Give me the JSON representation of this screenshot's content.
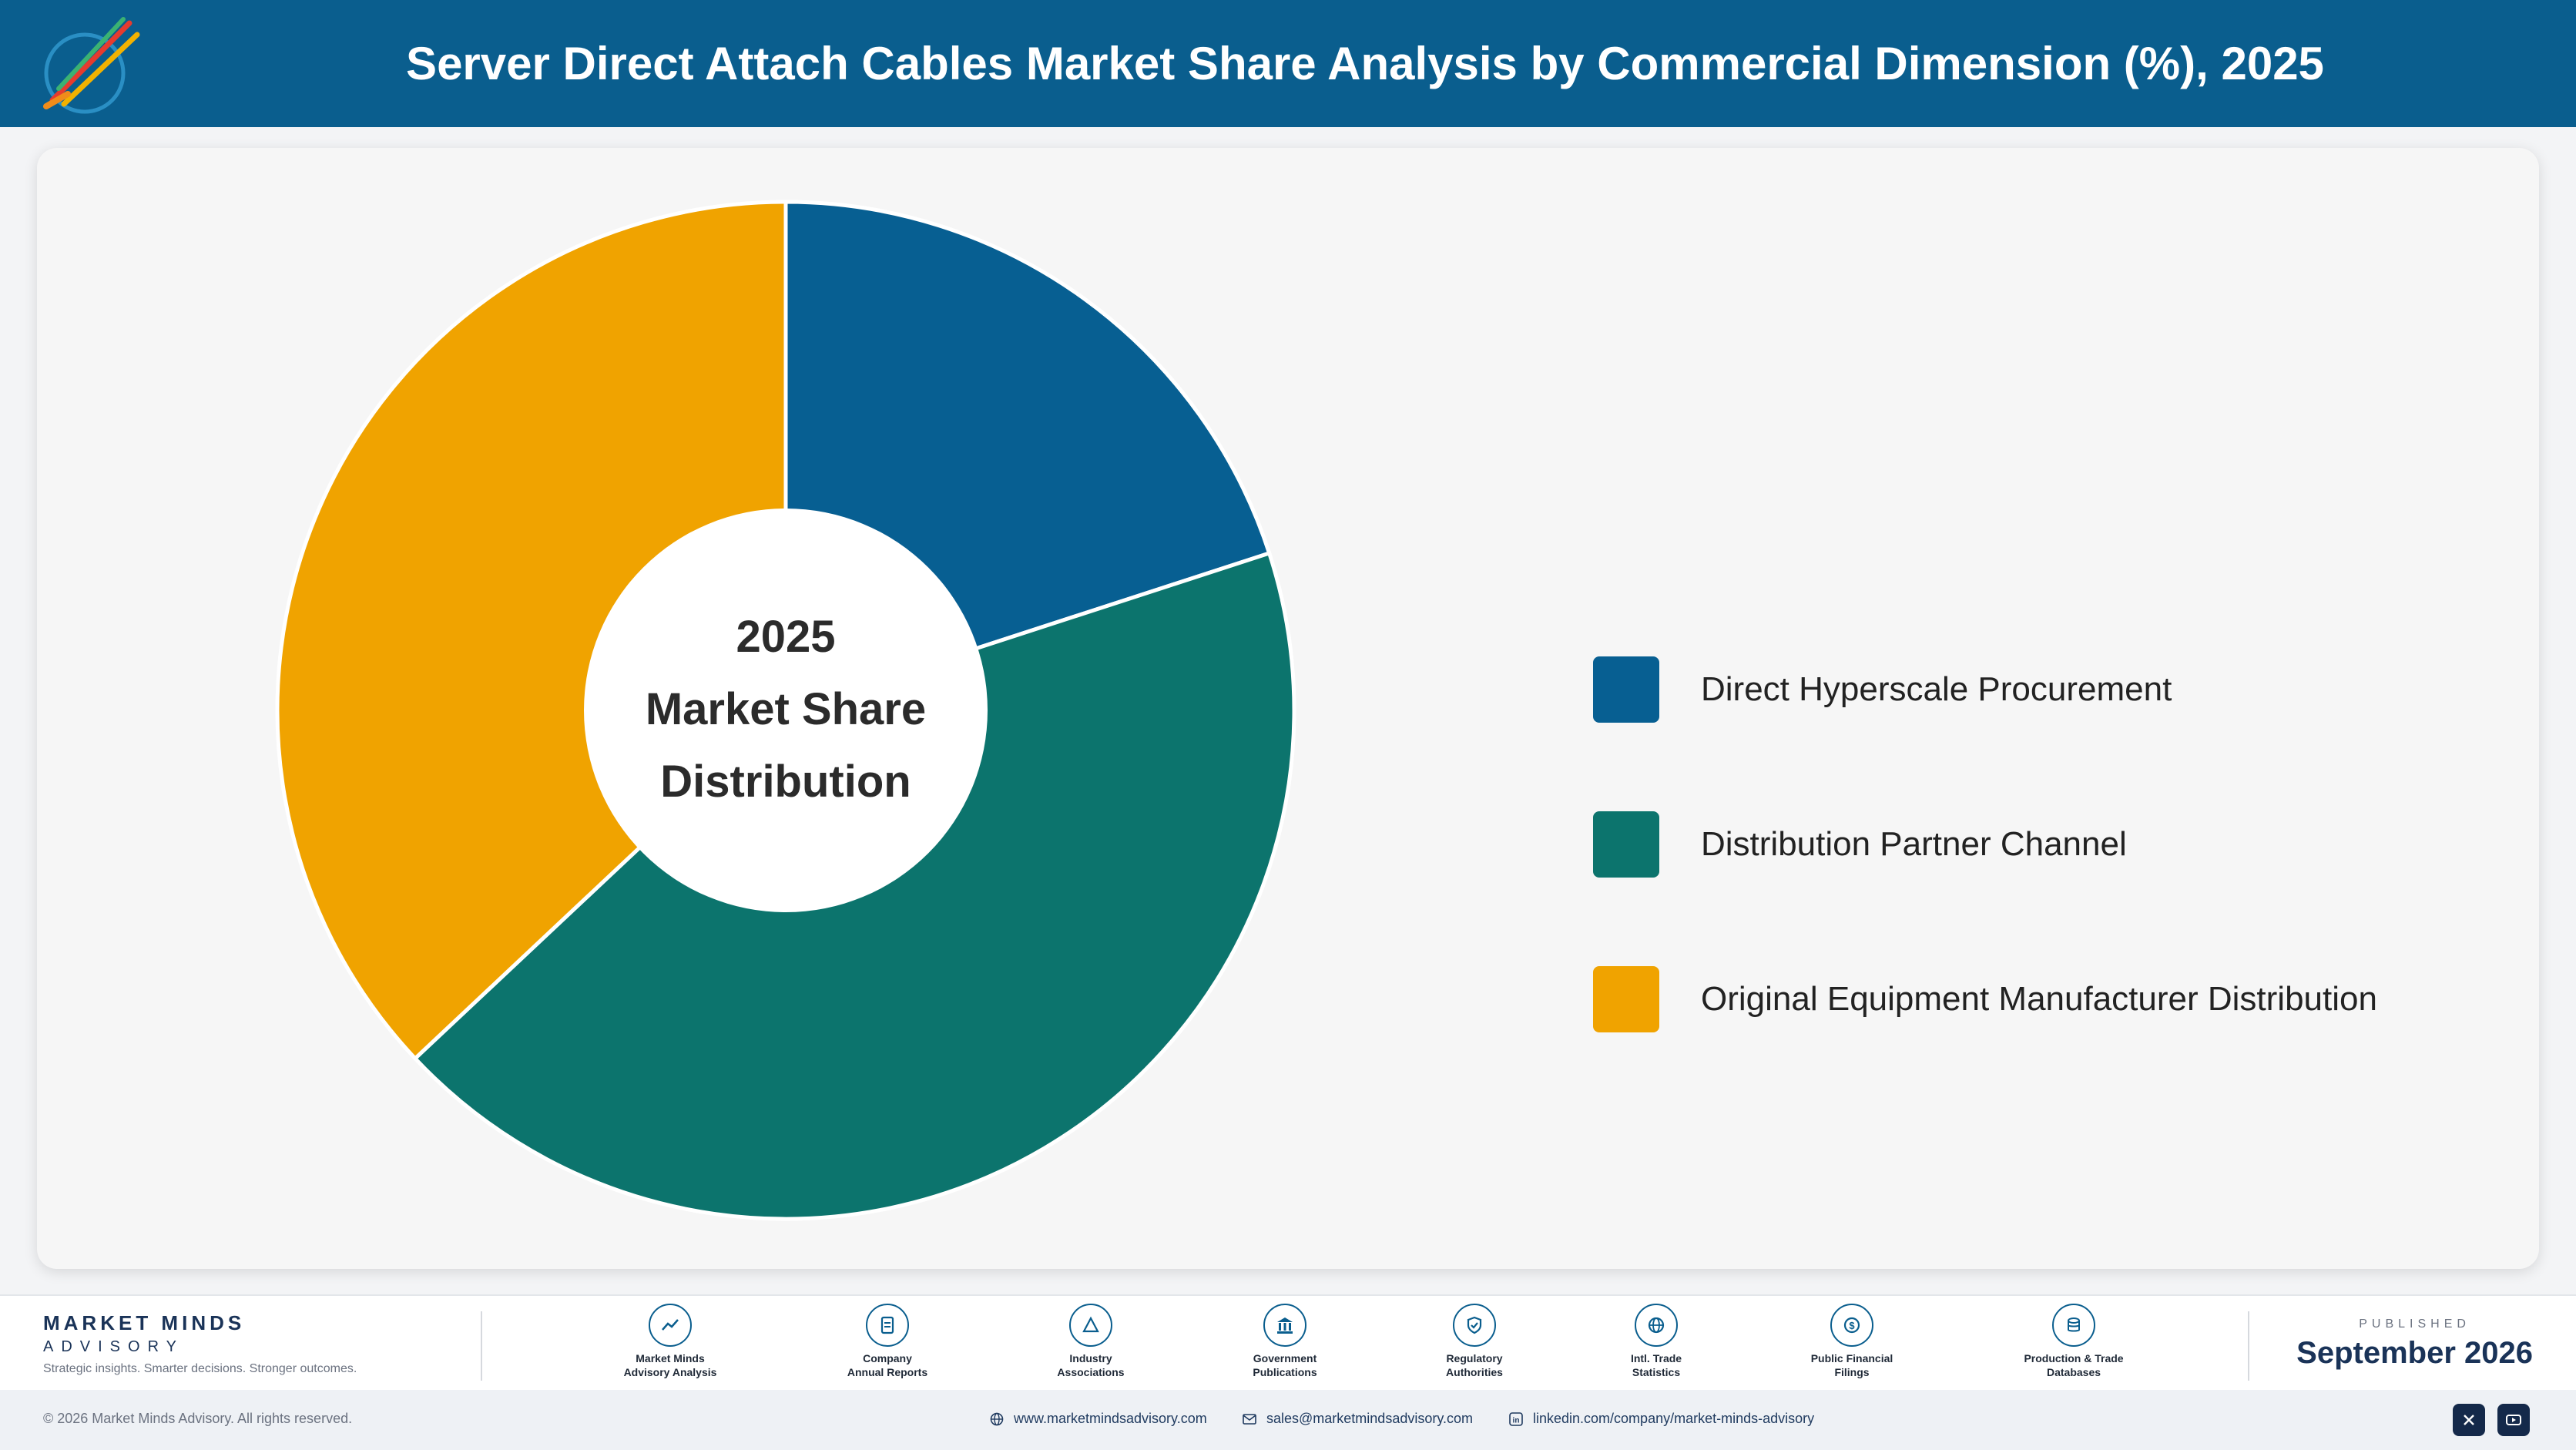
{
  "header": {
    "title": "Server Direct Attach Cables Market Share Analysis by Commercial Dimension (%), 2025",
    "background": "#0a5e8e"
  },
  "chart_data": {
    "type": "pie",
    "title": "Server Direct Attach Cables Market Share Analysis by Commercial Dimension (%), 2025",
    "center_label": [
      "2025",
      "Market Share",
      "Distribution"
    ],
    "categories": [
      "Direct Hyperscale Procurement",
      "Distribution Partner Channel",
      "Original Equipment Manufacturer Distribution"
    ],
    "values": [
      20,
      43,
      37
    ],
    "colors": [
      "#075f92",
      "#0c746d",
      "#f0a300"
    ],
    "donut": true,
    "legend_position": "right"
  },
  "legend": {
    "items": [
      {
        "label": "Direct Hyperscale Procurement",
        "color": "#075f92"
      },
      {
        "label": "Distribution Partner Channel",
        "color": "#0c746d"
      },
      {
        "label": "Original Equipment Manufacturer Distribution",
        "color": "#f0a300"
      }
    ]
  },
  "footer": {
    "brand_name": "MARKET MINDS",
    "brand_sub": "ADVISORY",
    "brand_tagline": "Strategic insights. Smarter decisions. Stronger outcomes.",
    "sources": [
      {
        "label": "Market Minds\nAdvisory Analysis",
        "icon": "trend-chart-icon"
      },
      {
        "label": "Company\nAnnual Reports",
        "icon": "document-icon"
      },
      {
        "label": "Industry\nAssociations",
        "icon": "network-icon"
      },
      {
        "label": "Government\nPublications",
        "icon": "government-building-icon"
      },
      {
        "label": "Regulatory\nAuthorities",
        "icon": "shield-check-icon"
      },
      {
        "label": "Intl. Trade\nStatistics",
        "icon": "globe-icon"
      },
      {
        "label": "Public Financial\nFilings",
        "icon": "dollar-coin-icon"
      },
      {
        "label": "Production & Trade\nDatabases",
        "icon": "database-icon"
      }
    ],
    "published_label": "PUBLISHED",
    "published_date": "September 2026"
  },
  "bottom_bar": {
    "copyright": "© 2026 Market Minds Advisory. All rights reserved.",
    "website": "www.marketmindsadvisory.com",
    "email": "sales@marketmindsadvisory.com",
    "linkedin": "linkedin.com/company/market-minds-advisory",
    "social_icons": [
      "x-icon",
      "youtube-icon"
    ]
  }
}
